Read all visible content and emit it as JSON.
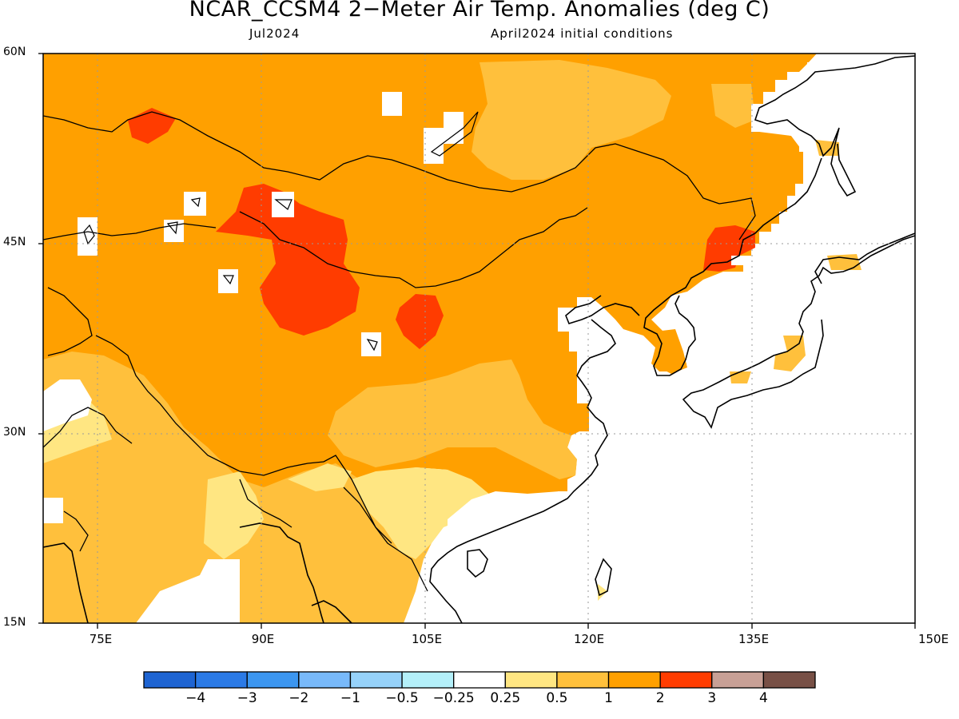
{
  "title": "NCAR_CCSM4 2−Meter Air Temp. Anomalies (deg C)",
  "subtitle_left": "Jul2024",
  "subtitle_right": "April2024 initial conditions",
  "lat_labels": [
    "60N",
    "45N",
    "30N",
    "15N"
  ],
  "lon_labels": [
    "75E",
    "90E",
    "105E",
    "120E",
    "135E",
    "150E"
  ],
  "colorbar": {
    "colors": [
      "#1e64d2",
      "#2b7ae6",
      "#3c96f0",
      "#78b9fa",
      "#96d2fa",
      "#b4f0fa",
      "#ffffff",
      "#ffe682",
      "#ffc03c",
      "#ffa000",
      "#ff3c00",
      "#c8a096",
      "#785046"
    ],
    "labels": [
      "−4",
      "−3",
      "−2",
      "−1",
      "−0.5",
      "−0.25",
      "0.25",
      "0.5",
      "1",
      "2",
      "3",
      "4"
    ]
  }
}
